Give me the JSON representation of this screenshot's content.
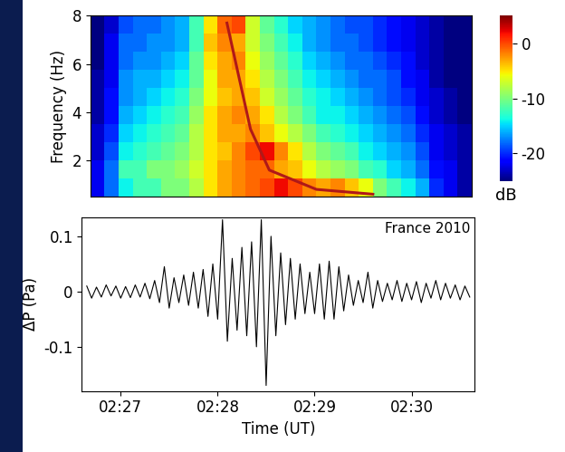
{
  "chart_data": [
    {
      "type": "heatmap",
      "ylabel": "Frequency (Hz)",
      "tick_labels": "y",
      "xlim": [
        26.6,
        30.65
      ],
      "ylim": [
        0.5,
        8
      ],
      "yticks": [
        2,
        4,
        6,
        8
      ],
      "x_edges": [
        26.6,
        26.75,
        26.9,
        27.05,
        27.2,
        27.35,
        27.5,
        27.65,
        27.8,
        27.95,
        28.1,
        28.25,
        28.4,
        28.55,
        28.7,
        28.85,
        29.0,
        29.15,
        29.3,
        29.45,
        29.6,
        29.75,
        29.9,
        30.05,
        30.2,
        30.35,
        30.5,
        30.65
      ],
      "y_edges": [
        0.5,
        1.25,
        2,
        2.75,
        3.5,
        4.25,
        5,
        5.75,
        6.5,
        7.25,
        8
      ],
      "cells": [
        [
          -22,
          -18,
          -14,
          -12,
          -12,
          -10,
          -10,
          -8,
          -5,
          -3,
          -2,
          -1,
          0,
          2,
          0,
          -2,
          -3,
          -2,
          -4,
          -6,
          -10,
          -12,
          -14,
          -16,
          -20,
          -22,
          -24
        ],
        [
          -22,
          -18,
          -12,
          -12,
          -10,
          -10,
          -9,
          -7,
          -5,
          -3,
          -2,
          -1,
          -1,
          -3,
          -4,
          -6,
          -8,
          -9,
          -10,
          -12,
          -13,
          -15,
          -16,
          -18,
          -21,
          -22,
          -24
        ],
        [
          -23,
          -19,
          -14,
          -13,
          -12,
          -11,
          -10,
          -8,
          -5,
          -4,
          -2,
          0,
          2,
          -2,
          -5,
          -8,
          -10,
          -11,
          -12,
          -14,
          -15,
          -16,
          -17,
          -19,
          -22,
          -23,
          -24
        ],
        [
          -23,
          -20,
          -15,
          -14,
          -13,
          -12,
          -11,
          -8,
          -5,
          -3,
          -3,
          -2,
          -4,
          -6,
          -8,
          -10,
          -12,
          -13,
          -14,
          -15,
          -16,
          -17,
          -18,
          -20,
          -22,
          -23,
          -24
        ],
        [
          -24,
          -21,
          -16,
          -15,
          -14,
          -13,
          -12,
          -9,
          -5,
          -3,
          -2,
          -3,
          -5,
          -8,
          -10,
          -12,
          -14,
          -14,
          -15,
          -16,
          -17,
          -18,
          -19,
          -21,
          -23,
          -24,
          -25
        ],
        [
          -24,
          -21,
          -17,
          -16,
          -15,
          -14,
          -13,
          -10,
          -6,
          -4,
          -3,
          -4,
          -7,
          -9,
          -11,
          -13,
          -14,
          -15,
          -16,
          -17,
          -18,
          -19,
          -20,
          -22,
          -23,
          -24,
          -25
        ],
        [
          -24,
          -22,
          -17,
          -16,
          -16,
          -15,
          -14,
          -11,
          -6,
          -3,
          -3,
          -5,
          -8,
          -10,
          -12,
          -14,
          -15,
          -16,
          -17,
          -18,
          -18,
          -19,
          -21,
          -22,
          -24,
          -25,
          -25
        ],
        [
          -25,
          -22,
          -18,
          -17,
          -17,
          -16,
          -15,
          -11,
          -5,
          -3,
          -2,
          -6,
          -9,
          -11,
          -13,
          -15,
          -16,
          -17,
          -18,
          -18,
          -19,
          -20,
          -21,
          -23,
          -24,
          -25,
          -25
        ],
        [
          -25,
          -22,
          -18,
          -18,
          -17,
          -17,
          -16,
          -12,
          -4,
          -2,
          -3,
          -7,
          -10,
          -12,
          -14,
          -16,
          -17,
          -18,
          -18,
          -19,
          -20,
          -21,
          -22,
          -23,
          -24,
          -25,
          -25
        ],
        [
          -25,
          -23,
          -19,
          -18,
          -18,
          -17,
          -16,
          -12,
          -5,
          -1,
          0,
          -7,
          -11,
          -13,
          -15,
          -16,
          -17,
          -18,
          -19,
          -19,
          -20,
          -21,
          -22,
          -23,
          -24,
          -25,
          -25
        ]
      ],
      "colorbar_range": [
        -25,
        5
      ],
      "colorbar_ticks": [
        -20,
        -10,
        0
      ],
      "colorbar_label": "dB",
      "series": [
        {
          "type": "line",
          "color": "#b01818",
          "x": [
            28.05,
            28.3,
            28.5,
            29.0,
            29.6
          ],
          "values": [
            7.7,
            3.3,
            1.6,
            0.8,
            0.6
          ]
        }
      ]
    },
    {
      "type": "line",
      "xlabel": "Time (UT)",
      "ylabel": "ΔP (Pa)",
      "annotations": [
        "France 2010"
      ],
      "color": "#000000",
      "xlim": [
        26.6,
        30.65
      ],
      "ylim": [
        -0.18,
        0.135
      ],
      "xticks": [
        {
          "value": 27,
          "label": "02:27"
        },
        {
          "value": 28,
          "label": "02:28"
        },
        {
          "value": 29,
          "label": "02:29"
        },
        {
          "value": 30,
          "label": "02:30"
        }
      ],
      "yticks": [
        -0.1,
        0,
        0.1
      ],
      "x": [
        26.65,
        26.7,
        26.75,
        26.8,
        26.85,
        26.9,
        26.95,
        27.0,
        27.05,
        27.1,
        27.15,
        27.2,
        27.25,
        27.3,
        27.35,
        27.4,
        27.45,
        27.5,
        27.55,
        27.6,
        27.65,
        27.7,
        27.75,
        27.8,
        27.85,
        27.9,
        27.95,
        28.0,
        28.05,
        28.1,
        28.15,
        28.2,
        28.25,
        28.3,
        28.35,
        28.4,
        28.45,
        28.5,
        28.55,
        28.6,
        28.65,
        28.7,
        28.75,
        28.8,
        28.85,
        28.9,
        28.95,
        29.0,
        29.05,
        29.1,
        29.15,
        29.2,
        29.25,
        29.3,
        29.35,
        29.4,
        29.45,
        29.5,
        29.55,
        29.6,
        29.65,
        29.7,
        29.75,
        29.8,
        29.85,
        29.9,
        29.95,
        30.0,
        30.05,
        30.1,
        30.15,
        30.2,
        30.25,
        30.3,
        30.35,
        30.4,
        30.45,
        30.5,
        30.55,
        30.6
      ],
      "values": [
        0.01,
        -0.012,
        0.008,
        -0.01,
        0.012,
        -0.008,
        0.01,
        -0.012,
        0.009,
        -0.011,
        0.012,
        -0.01,
        0.015,
        -0.013,
        0.02,
        -0.02,
        0.045,
        -0.03,
        0.025,
        -0.02,
        0.03,
        -0.025,
        0.035,
        -0.03,
        0.04,
        -0.045,
        0.05,
        -0.05,
        0.13,
        -0.09,
        0.06,
        -0.07,
        0.08,
        -0.08,
        0.09,
        -0.1,
        0.13,
        -0.17,
        0.1,
        -0.08,
        0.07,
        -0.06,
        0.06,
        -0.05,
        0.05,
        -0.04,
        0.035,
        -0.04,
        0.05,
        -0.05,
        0.055,
        -0.05,
        0.045,
        -0.035,
        0.03,
        -0.025,
        0.02,
        -0.02,
        0.035,
        -0.03,
        0.02,
        -0.018,
        0.015,
        -0.015,
        0.02,
        -0.018,
        0.015,
        -0.015,
        0.018,
        -0.02,
        0.015,
        -0.012,
        0.02,
        -0.015,
        0.015,
        -0.012,
        0.012,
        -0.015,
        0.01,
        -0.01
      ]
    }
  ]
}
